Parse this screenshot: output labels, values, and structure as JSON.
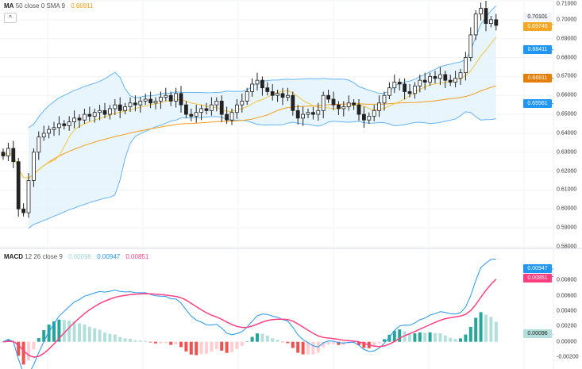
{
  "legend_main": {
    "name": "MA",
    "params": "50 close 0 SMA 9",
    "value": "0.66911",
    "value_color": "#f59c1a"
  },
  "legend_macd": {
    "name": "MACD",
    "params": "12 26 close 9",
    "hist": "0.00096",
    "macd": "0.00947",
    "signal": "0.00851"
  },
  "collapse_label": "^",
  "price_ticks": [
    "0.71000",
    "0.70000",
    "0.69000",
    "0.68000",
    "0.67000",
    "0.66000",
    "0.65000",
    "0.64000",
    "0.63000",
    "0.62000",
    "0.61000",
    "0.60000",
    "0.59000",
    "0.58000"
  ],
  "price_tags": [
    {
      "text": "0.70101",
      "bg": "#f0f3f7",
      "fg": "#222",
      "price": 0.70101
    },
    {
      "text": "0.69746",
      "bg": "#f5a623",
      "fg": "#fff",
      "price": 0.69746
    },
    {
      "text": "0.68411",
      "bg": "#2196f3",
      "fg": "#fff",
      "price": 0.68411
    },
    {
      "text": "0.66911",
      "bg": "#e67e0a",
      "fg": "#fff",
      "price": 0.66911
    },
    {
      "text": "0.65561",
      "bg": "#2196f3",
      "fg": "#fff",
      "price": 0.65561
    }
  ],
  "macd_ticks": [
    "0.00800",
    "0.00600",
    "0.00400",
    "0.00200",
    "0.00000",
    "-0.00200"
  ],
  "macd_tags": [
    {
      "text": "0.00947",
      "bg": "#2196f3",
      "fg": "#fff",
      "value": 0.00947
    },
    {
      "text": "0.00851",
      "bg": "#ff3d7f",
      "fg": "#fff",
      "value": 0.00851
    },
    {
      "text": "0.00096",
      "bg": "#b2dfdb",
      "fg": "#222",
      "value": 0.00096
    }
  ],
  "colors": {
    "bb_line": "#64b5f6",
    "bb_fill": "#e3f2fd",
    "ma_long": "#f59c1a",
    "ma_short": "#f5c542",
    "macd": "#2196f3",
    "signal": "#ff4081",
    "hist_up": "#26a69a",
    "hist_up_light": "#b2dfdb",
    "hist_dn": "#ef5350",
    "hist_dn_light": "#ffcdd2"
  },
  "chart_data": {
    "type": "candlestick",
    "ylim": [
      0.58,
      0.71
    ],
    "macd_ylim": [
      -0.0021,
      0.0101
    ],
    "closes": [
      0.628,
      0.632,
      0.625,
      0.6,
      0.598,
      0.615,
      0.63,
      0.638,
      0.64,
      0.642,
      0.643,
      0.645,
      0.644,
      0.646,
      0.648,
      0.647,
      0.65,
      0.649,
      0.651,
      0.652,
      0.65,
      0.653,
      0.655,
      0.652,
      0.654,
      0.656,
      0.655,
      0.657,
      0.658,
      0.656,
      0.657,
      0.659,
      0.66,
      0.657,
      0.661,
      0.655,
      0.65,
      0.649,
      0.651,
      0.653,
      0.652,
      0.655,
      0.657,
      0.65,
      0.647,
      0.651,
      0.655,
      0.657,
      0.662,
      0.666,
      0.668,
      0.664,
      0.662,
      0.66,
      0.661,
      0.659,
      0.66,
      0.652,
      0.648,
      0.65,
      0.651,
      0.65,
      0.652,
      0.66,
      0.658,
      0.655,
      0.653,
      0.654,
      0.656,
      0.655,
      0.65,
      0.647,
      0.649,
      0.652,
      0.656,
      0.66,
      0.664,
      0.667,
      0.666,
      0.662,
      0.661,
      0.665,
      0.668,
      0.667,
      0.67,
      0.669,
      0.671,
      0.668,
      0.667,
      0.669,
      0.672,
      0.68,
      0.692,
      0.703,
      0.706,
      0.698,
      0.7,
      0.697
    ],
    "grid": true
  }
}
